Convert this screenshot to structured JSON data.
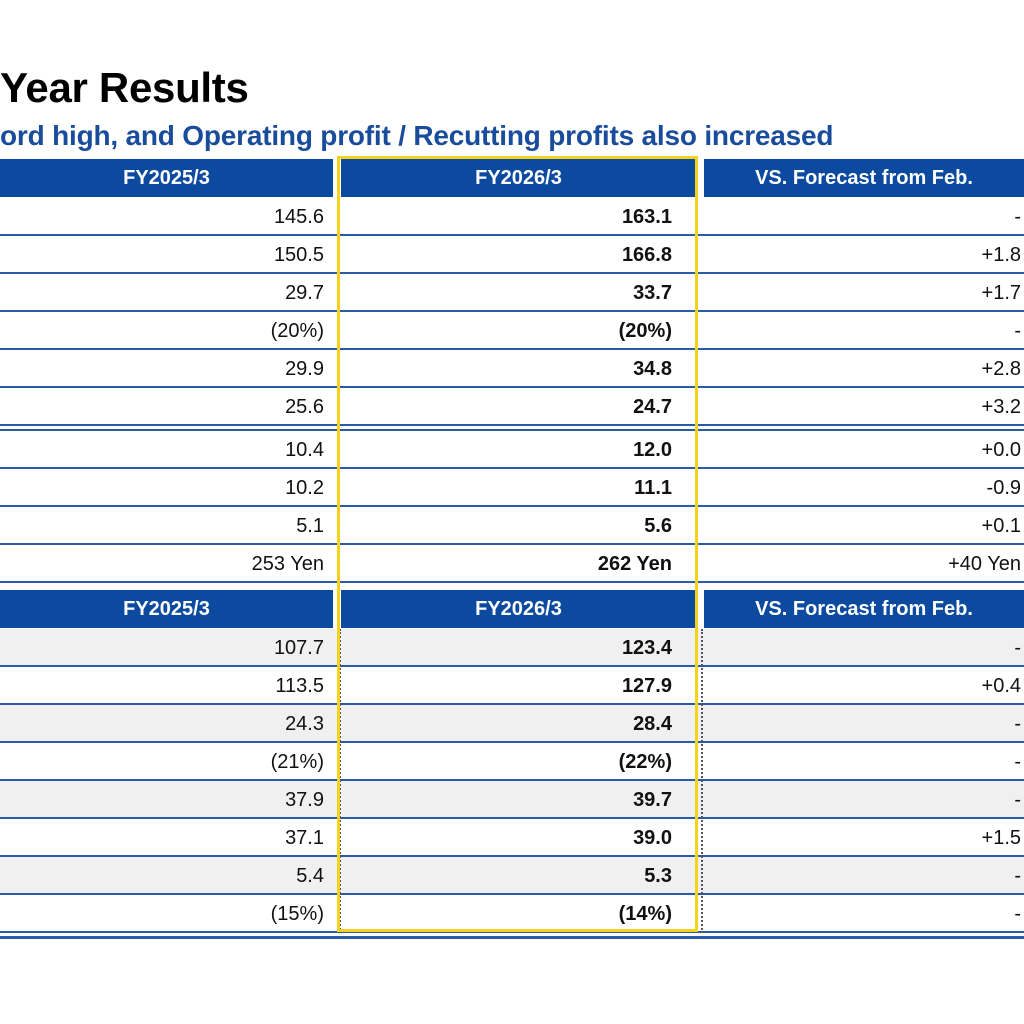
{
  "title": "Year Results",
  "subtitle": "ord high, and Operating profit / Recutting profits also increased",
  "colors": {
    "header_bg": "#0b4a9f",
    "subtitle": "#1a4c9c",
    "highlight": "#f5d21c"
  },
  "table1": {
    "headers": [
      "FY2025/3",
      "FY2026/3",
      "VS. Forecast from Feb."
    ],
    "rows": [
      [
        "145.6",
        "163.1",
        "-"
      ],
      [
        "150.5",
        "166.8",
        "+1.8"
      ],
      [
        "29.7",
        "33.7",
        "+1.7"
      ],
      [
        "(20%)",
        "(20%)",
        "-"
      ],
      [
        "29.9",
        "34.8",
        "+2.8"
      ],
      [
        "25.6",
        "24.7",
        "+3.2"
      ],
      [
        "10.4",
        "12.0",
        "+0.0"
      ],
      [
        "10.2",
        "11.1",
        "-0.9"
      ],
      [
        "5.1",
        "5.6",
        "+0.1"
      ],
      [
        "253 Yen",
        "262 Yen",
        "+40 Yen"
      ]
    ]
  },
  "table2": {
    "headers": [
      "FY2025/3",
      "FY2026/3",
      "VS. Forecast from Feb."
    ],
    "rows": [
      [
        "107.7",
        "123.4",
        "-"
      ],
      [
        "113.5",
        "127.9",
        "+0.4"
      ],
      [
        "24.3",
        "28.4",
        "-"
      ],
      [
        "(21%)",
        "(22%)",
        "-"
      ],
      [
        "37.9",
        "39.7",
        "-"
      ],
      [
        "37.1",
        "39.0",
        "+1.5"
      ],
      [
        "5.4",
        "5.3",
        "-"
      ],
      [
        "(15%)",
        "(14%)",
        "-"
      ]
    ]
  }
}
